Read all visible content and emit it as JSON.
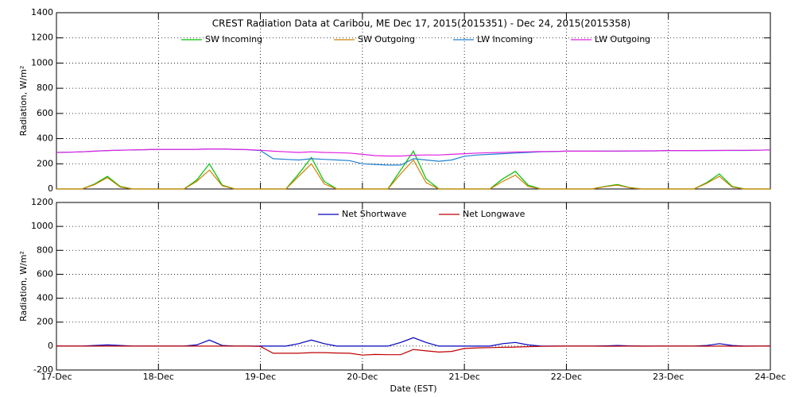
{
  "chart_data": [
    {
      "type": "line",
      "title": "CREST Radiation Data at Caribou, ME   Dec 17, 2015(2015351) - Dec 24, 2015(2015358)",
      "y_label": "Radiation, W/m²",
      "x": [
        17,
        17.125,
        17.25,
        17.375,
        17.5,
        17.625,
        17.75,
        17.875,
        18,
        18.125,
        18.25,
        18.375,
        18.5,
        18.625,
        18.75,
        18.875,
        19,
        19.125,
        19.25,
        19.375,
        19.5,
        19.625,
        19.75,
        19.875,
        20,
        20.125,
        20.25,
        20.375,
        20.5,
        20.625,
        20.75,
        20.875,
        21,
        21.125,
        21.25,
        21.375,
        21.5,
        21.625,
        21.75,
        21.875,
        22,
        22.125,
        22.25,
        22.375,
        22.5,
        22.625,
        22.75,
        22.875,
        23,
        23.125,
        23.25,
        23.375,
        23.5,
        23.625,
        23.75,
        23.875,
        24
      ],
      "xlim": [
        17,
        24
      ],
      "xticks": [
        17,
        18,
        19,
        20,
        21,
        22,
        23,
        24
      ],
      "ylim": [
        0,
        1400
      ],
      "yticks": [
        0,
        200,
        400,
        600,
        800,
        1000,
        1200,
        1400
      ],
      "grid": true,
      "series": [
        {
          "name": "SW Incoming",
          "color": "#00c000",
          "values": [
            0,
            0,
            0,
            40,
            100,
            20,
            0,
            0,
            0,
            0,
            0,
            70,
            200,
            30,
            0,
            0,
            0,
            0,
            0,
            120,
            250,
            60,
            0,
            0,
            0,
            0,
            0,
            150,
            300,
            80,
            0,
            0,
            0,
            0,
            0,
            80,
            140,
            30,
            0,
            0,
            0,
            0,
            0,
            20,
            35,
            10,
            0,
            0,
            0,
            0,
            0,
            50,
            120,
            20,
            0,
            0,
            0
          ]
        },
        {
          "name": "SW Outgoing",
          "color": "#d08000",
          "values": [
            0,
            0,
            0,
            35,
            90,
            15,
            0,
            0,
            0,
            0,
            0,
            60,
            150,
            25,
            0,
            0,
            0,
            0,
            0,
            100,
            200,
            40,
            0,
            0,
            0,
            0,
            0,
            120,
            230,
            50,
            0,
            0,
            0,
            0,
            0,
            60,
            110,
            20,
            0,
            0,
            0,
            0,
            0,
            18,
            30,
            8,
            0,
            0,
            0,
            0,
            0,
            45,
            100,
            15,
            0,
            0,
            0
          ]
        },
        {
          "name": "LW Incoming",
          "color": "#2080d0",
          "values": [
            290,
            292,
            295,
            300,
            305,
            308,
            310,
            312,
            315,
            315,
            315,
            315,
            318,
            318,
            315,
            312,
            305,
            240,
            235,
            230,
            240,
            235,
            230,
            225,
            200,
            195,
            190,
            190,
            240,
            230,
            220,
            230,
            260,
            270,
            275,
            280,
            285,
            290,
            295,
            297,
            300,
            300,
            300,
            300,
            300,
            302,
            302,
            303,
            305,
            305,
            305,
            305,
            306,
            306,
            306,
            308,
            310
          ]
        },
        {
          "name": "LW Outgoing",
          "color": "#e020e0",
          "values": [
            290,
            292,
            295,
            300,
            305,
            308,
            310,
            312,
            315,
            315,
            315,
            315,
            318,
            318,
            315,
            312,
            308,
            300,
            295,
            290,
            295,
            290,
            288,
            285,
            275,
            265,
            262,
            262,
            268,
            270,
            270,
            275,
            280,
            285,
            288,
            290,
            293,
            295,
            297,
            298,
            300,
            300,
            300,
            301,
            301,
            302,
            303,
            303,
            305,
            305,
            305,
            306,
            306,
            307,
            307,
            308,
            310
          ]
        }
      ]
    },
    {
      "type": "line",
      "y_label": "Radiation, W/m²",
      "x_label": "Date (EST)",
      "x": [
        17,
        17.125,
        17.25,
        17.375,
        17.5,
        17.625,
        17.75,
        17.875,
        18,
        18.125,
        18.25,
        18.375,
        18.5,
        18.625,
        18.75,
        18.875,
        19,
        19.125,
        19.25,
        19.375,
        19.5,
        19.625,
        19.75,
        19.875,
        20,
        20.125,
        20.25,
        20.375,
        20.5,
        20.625,
        20.75,
        20.875,
        21,
        21.125,
        21.25,
        21.375,
        21.5,
        21.625,
        21.75,
        21.875,
        22,
        22.125,
        22.25,
        22.375,
        22.5,
        22.625,
        22.75,
        22.875,
        23,
        23.125,
        23.25,
        23.375,
        23.5,
        23.625,
        23.75,
        23.875,
        24
      ],
      "xlim": [
        17,
        24
      ],
      "xticks": [
        {
          "value": 17,
          "label": "17-Dec"
        },
        {
          "value": 18,
          "label": "18-Dec"
        },
        {
          "value": 19,
          "label": "19-Dec"
        },
        {
          "value": 20,
          "label": "20-Dec"
        },
        {
          "value": 21,
          "label": "21-Dec"
        },
        {
          "value": 22,
          "label": "22-Dec"
        },
        {
          "value": 23,
          "label": "23-Dec"
        },
        {
          "value": 24,
          "label": "24-Dec"
        }
      ],
      "ylim": [
        -200,
        1200
      ],
      "yticks": [
        -200,
        0,
        200,
        400,
        600,
        800,
        1000,
        1200
      ],
      "grid": true,
      "series": [
        {
          "name": "Net Shortwave",
          "color": "#0000c0",
          "values": [
            0,
            0,
            0,
            5,
            10,
            5,
            0,
            0,
            0,
            0,
            0,
            10,
            50,
            5,
            0,
            0,
            0,
            0,
            0,
            20,
            50,
            20,
            0,
            0,
            0,
            0,
            0,
            30,
            70,
            30,
            0,
            0,
            0,
            0,
            0,
            20,
            30,
            10,
            0,
            0,
            0,
            0,
            0,
            2,
            5,
            2,
            0,
            0,
            0,
            0,
            0,
            5,
            20,
            5,
            0,
            0,
            0
          ]
        },
        {
          "name": "Net Longwave",
          "color": "#c00000",
          "values": [
            0,
            0,
            0,
            0,
            0,
            0,
            0,
            0,
            0,
            0,
            0,
            0,
            0,
            0,
            0,
            0,
            -3,
            -60,
            -60,
            -60,
            -55,
            -55,
            -58,
            -60,
            -75,
            -70,
            -72,
            -72,
            -28,
            -40,
            -50,
            -45,
            -20,
            -15,
            -13,
            -10,
            -8,
            -5,
            -2,
            -1,
            0,
            0,
            0,
            -1,
            -1,
            0,
            -1,
            0,
            0,
            0,
            0,
            -1,
            0,
            -1,
            -1,
            0,
            0
          ]
        }
      ]
    }
  ]
}
